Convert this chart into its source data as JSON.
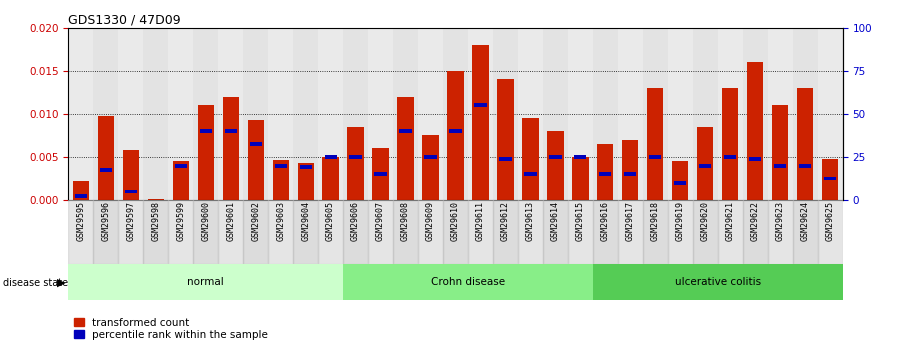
{
  "title": "GDS1330 / 47D09",
  "samples": [
    "GSM29595",
    "GSM29596",
    "GSM29597",
    "GSM29598",
    "GSM29599",
    "GSM29600",
    "GSM29601",
    "GSM29602",
    "GSM29603",
    "GSM29604",
    "GSM29605",
    "GSM29606",
    "GSM29607",
    "GSM29608",
    "GSM29609",
    "GSM29610",
    "GSM29611",
    "GSM29612",
    "GSM29613",
    "GSM29614",
    "GSM29615",
    "GSM29616",
    "GSM29617",
    "GSM29618",
    "GSM29619",
    "GSM29620",
    "GSM29621",
    "GSM29622",
    "GSM29623",
    "GSM29624",
    "GSM29625"
  ],
  "transformed_count": [
    0.0022,
    0.0098,
    0.0058,
    0.0001,
    0.0045,
    0.011,
    0.012,
    0.0093,
    0.0046,
    0.0043,
    0.005,
    0.0085,
    0.006,
    0.012,
    0.0075,
    0.015,
    0.018,
    0.014,
    0.0095,
    0.008,
    0.005,
    0.0065,
    0.007,
    0.013,
    0.0045,
    0.0085,
    0.013,
    0.016,
    0.011,
    0.013,
    0.0048
  ],
  "percentile_rank": [
    0.0005,
    0.0035,
    0.001,
    0.0,
    0.004,
    0.008,
    0.008,
    0.0065,
    0.004,
    0.0038,
    0.005,
    0.005,
    0.003,
    0.008,
    0.005,
    0.008,
    0.011,
    0.0048,
    0.003,
    0.005,
    0.005,
    0.003,
    0.003,
    0.005,
    0.002,
    0.004,
    0.005,
    0.0048,
    0.004,
    0.004,
    0.0025
  ],
  "groups": [
    {
      "label": "normal",
      "start": 0,
      "end": 10,
      "color": "#ccffcc"
    },
    {
      "label": "Crohn disease",
      "start": 11,
      "end": 20,
      "color": "#88ee88"
    },
    {
      "label": "ulcerative colitis",
      "start": 21,
      "end": 30,
      "color": "#55cc55"
    }
  ],
  "bar_color": "#cc2200",
  "blue_color": "#0000bb",
  "left_ylim": [
    0,
    0.02
  ],
  "right_ylim": [
    0,
    100
  ],
  "left_yticks": [
    0,
    0.005,
    0.01,
    0.015,
    0.02
  ],
  "right_yticks": [
    0,
    25,
    50,
    75,
    100
  ],
  "left_axis_color": "#cc0000",
  "right_axis_color": "#0000cc",
  "col_colors": [
    "#cccccc",
    "#bbbbbb"
  ]
}
